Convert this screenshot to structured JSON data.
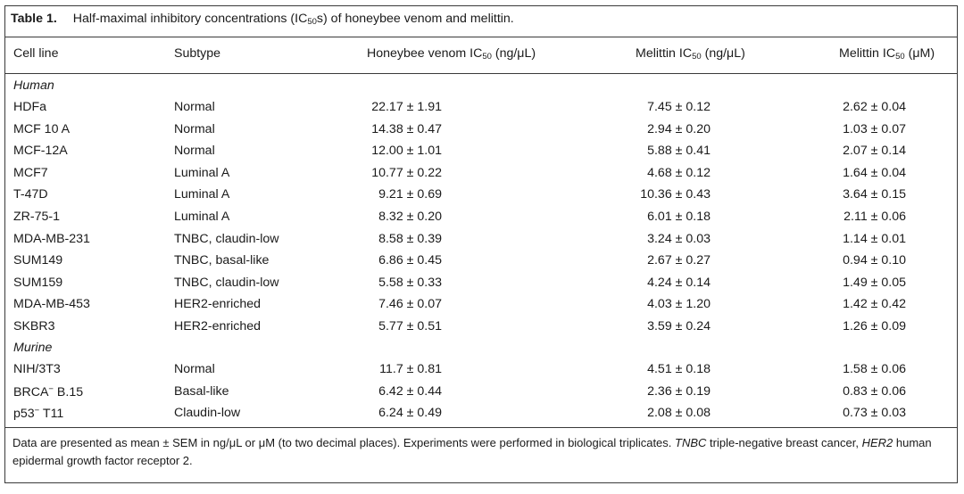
{
  "caption": {
    "label": "Table 1.",
    "text_before": "Half-maximal inhibitory concentrations (IC",
    "text_sub": "50",
    "text_after": "s) of honeybee venom and melittin."
  },
  "columns": {
    "cell_line": "Cell line",
    "subtype": "Subtype",
    "venom": {
      "pre": "Honeybee venom IC",
      "sub": "50",
      "post": " (ng/μL)"
    },
    "mel_ng": {
      "pre": "Melittin IC",
      "sub": "50",
      "post": " (ng/μL)"
    },
    "mel_um": {
      "pre": "Melittin IC",
      "sub": "50",
      "post": " (μM)"
    }
  },
  "groups": [
    {
      "label": "Human"
    },
    {
      "label": "Murine"
    }
  ],
  "rows": [
    {
      "cell": "HDFa",
      "subtype": "Normal",
      "venom": "22.17 ± 1.91",
      "mel_ng": "7.45 ± 0.12",
      "mel_um": "2.62 ± 0.04"
    },
    {
      "cell": "MCF 10 A",
      "subtype": "Normal",
      "venom": "14.38 ± 0.47",
      "mel_ng": "2.94 ± 0.20",
      "mel_um": "1.03 ± 0.07"
    },
    {
      "cell": "MCF-12A",
      "subtype": "Normal",
      "venom": "12.00 ± 1.01",
      "mel_ng": "5.88 ± 0.41",
      "mel_um": "2.07 ± 0.14"
    },
    {
      "cell": "MCF7",
      "subtype": "Luminal A",
      "venom": "10.77 ± 0.22",
      "mel_ng": "4.68 ± 0.12",
      "mel_um": "1.64 ± 0.04"
    },
    {
      "cell": "T-47D",
      "subtype": "Luminal A",
      "venom": "9.21 ± 0.69",
      "mel_ng": "10.36 ± 0.43",
      "mel_um": "3.64 ± 0.15"
    },
    {
      "cell": "ZR-75-1",
      "subtype": "Luminal A",
      "venom": "8.32 ± 0.20",
      "mel_ng": "6.01 ± 0.18",
      "mel_um": "2.11 ± 0.06"
    },
    {
      "cell": "MDA-MB-231",
      "subtype": "TNBC, claudin-low",
      "venom": "8.58 ± 0.39",
      "mel_ng": "3.24 ± 0.03",
      "mel_um": "1.14 ± 0.01"
    },
    {
      "cell": "SUM149",
      "subtype": "TNBC, basal-like",
      "venom": "6.86 ± 0.45",
      "mel_ng": "2.67 ± 0.27",
      "mel_um": "0.94 ± 0.10"
    },
    {
      "cell": "SUM159",
      "subtype": "TNBC, claudin-low",
      "venom": "5.58 ± 0.33",
      "mel_ng": "4.24 ± 0.14",
      "mel_um": "1.49 ± 0.05"
    },
    {
      "cell": "MDA-MB-453",
      "subtype": "HER2-enriched",
      "venom": "7.46 ± 0.07",
      "mel_ng": "4.03 ± 1.20",
      "mel_um": "1.42 ± 0.42"
    },
    {
      "cell": "SKBR3",
      "subtype": "HER2-enriched",
      "venom": "5.77 ± 0.51",
      "mel_ng": "3.59 ± 0.24",
      "mel_um": "1.26 ± 0.09"
    },
    {
      "cell": "NIH/3T3",
      "subtype": "Normal",
      "venom": "11.7 ± 0.81",
      "mel_ng": "4.51 ± 0.18",
      "mel_um": "1.58 ± 0.06"
    },
    {
      "cell_pre": "BRCA",
      "cell_sup": "−",
      "cell_post": " B.15",
      "subtype": "Basal-like",
      "venom": "6.42 ± 0.44",
      "mel_ng": "2.36 ± 0.19",
      "mel_um": "0.83 ± 0.06"
    },
    {
      "cell_pre": "p53",
      "cell_sup": "−",
      "cell_post": " T11",
      "subtype": "Claudin-low",
      "venom": "6.24 ± 0.49",
      "mel_ng": "2.08 ± 0.08",
      "mel_um": "0.73 ± 0.03"
    }
  ],
  "footnote": {
    "text1": "Data are presented as mean ± SEM in ng/μL or μM (to two decimal places). Experiments were performed in biological triplicates. ",
    "abbr1": "TNBC",
    "text2": " triple-negative breast cancer, ",
    "abbr2": "HER2",
    "text3": " human epidermal growth factor receptor 2."
  }
}
